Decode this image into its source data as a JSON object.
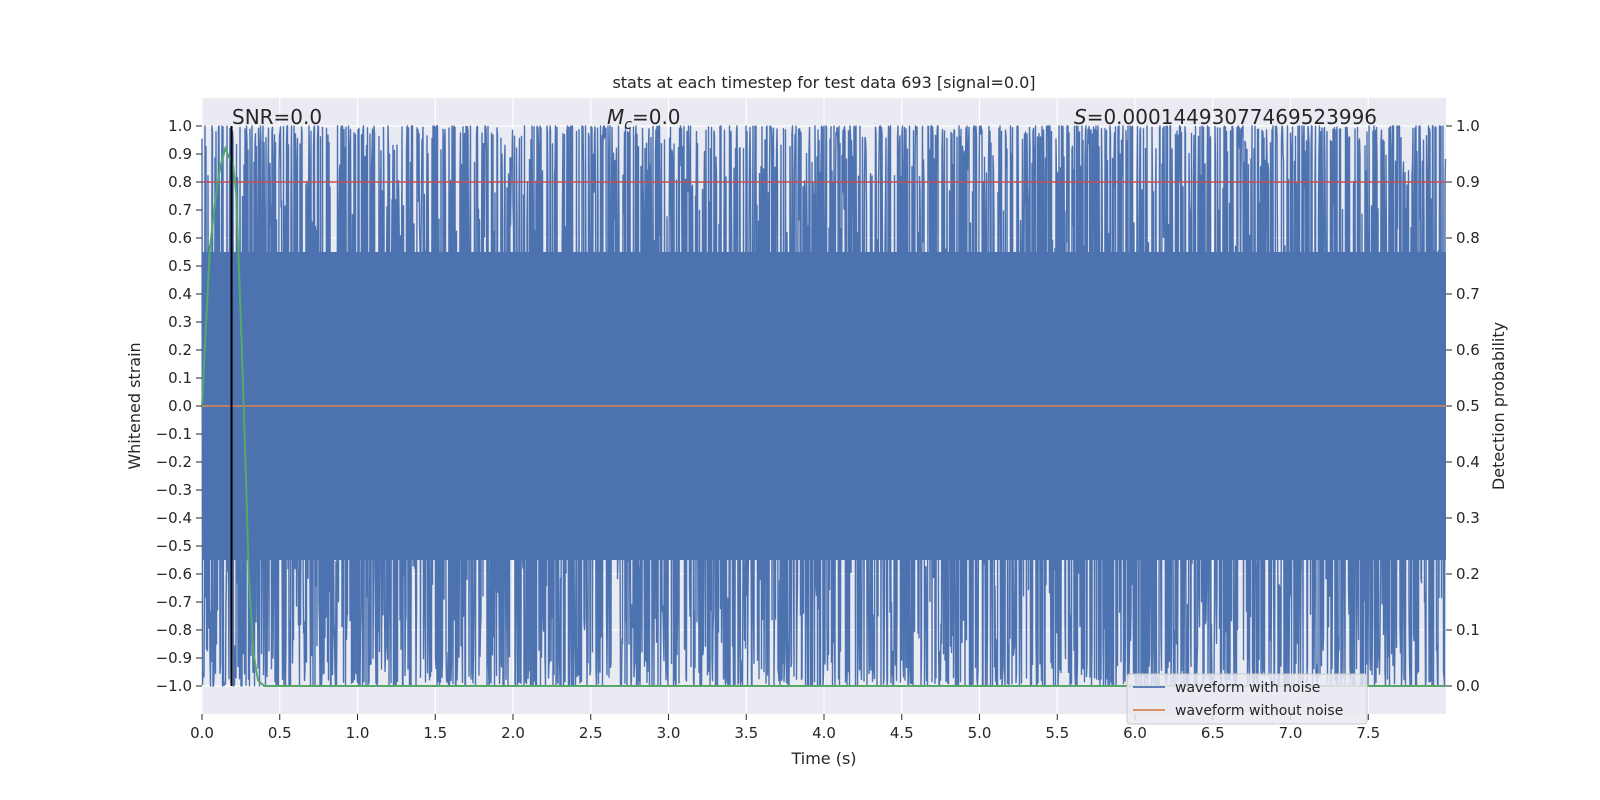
{
  "chart_data": {
    "type": "line",
    "title": "stats at each timestep for test data 693 [signal=0.0]",
    "xlabel": "Time (s)",
    "ylabel_left": "Whitened strain",
    "ylabel_right": "Detection probability",
    "xlim": [
      0.0,
      8.0
    ],
    "ylim_left": [
      -1.1,
      1.1
    ],
    "ylim_right": [
      -0.05,
      1.05
    ],
    "x_ticks": [
      "0.0",
      "0.5",
      "1.0",
      "1.5",
      "2.0",
      "2.5",
      "3.0",
      "3.5",
      "4.0",
      "4.5",
      "5.0",
      "5.5",
      "6.0",
      "6.5",
      "7.0",
      "7.5"
    ],
    "y_left_ticks": [
      "1.0",
      "0.9",
      "0.8",
      "0.7",
      "0.6",
      "0.5",
      "0.4",
      "0.3",
      "0.2",
      "0.1",
      "0.0",
      "−0.1",
      "−0.2",
      "−0.3",
      "−0.4",
      "−0.5",
      "−0.6",
      "−0.7",
      "−0.8",
      "−0.9",
      "−1.0"
    ],
    "y_right_ticks": [
      "1.0",
      "0.9",
      "0.8",
      "0.7",
      "0.6",
      "0.5",
      "0.4",
      "0.3",
      "0.2",
      "0.1",
      "0.0"
    ],
    "annotations": {
      "snr": "SNR=0.0",
      "mc_symbol": "M",
      "mc_subscript": "c",
      "mc_value": "=0.0",
      "s_symbol": "S",
      "s_value": "=0.00014493077469523996"
    },
    "series": [
      {
        "name": "waveform with noise",
        "color": "#4c72b0",
        "kind": "dense noise spanning approx -1.0 to 1.0 over full time range"
      },
      {
        "name": "waveform without noise",
        "color": "#dd8452",
        "values_constant": 0.0
      }
    ],
    "detection_probability": {
      "color": "#55a868",
      "x": [
        0.0,
        0.05,
        0.1,
        0.12,
        0.15,
        0.18,
        0.2,
        0.22,
        0.25,
        0.28,
        0.3,
        0.33,
        0.36,
        0.4,
        0.5,
        8.0
      ],
      "y": [
        0.5,
        0.78,
        0.9,
        0.93,
        0.96,
        0.94,
        0.93,
        0.88,
        0.65,
        0.4,
        0.2,
        0.06,
        0.01,
        0.0,
        0.0,
        0.0
      ]
    },
    "threshold_line": {
      "value": 0.9,
      "axis": "right",
      "color": "#c44e52"
    },
    "event_marker": {
      "x": 0.19,
      "color": "#000000"
    },
    "grid": true,
    "legend_position": "lower-right"
  }
}
